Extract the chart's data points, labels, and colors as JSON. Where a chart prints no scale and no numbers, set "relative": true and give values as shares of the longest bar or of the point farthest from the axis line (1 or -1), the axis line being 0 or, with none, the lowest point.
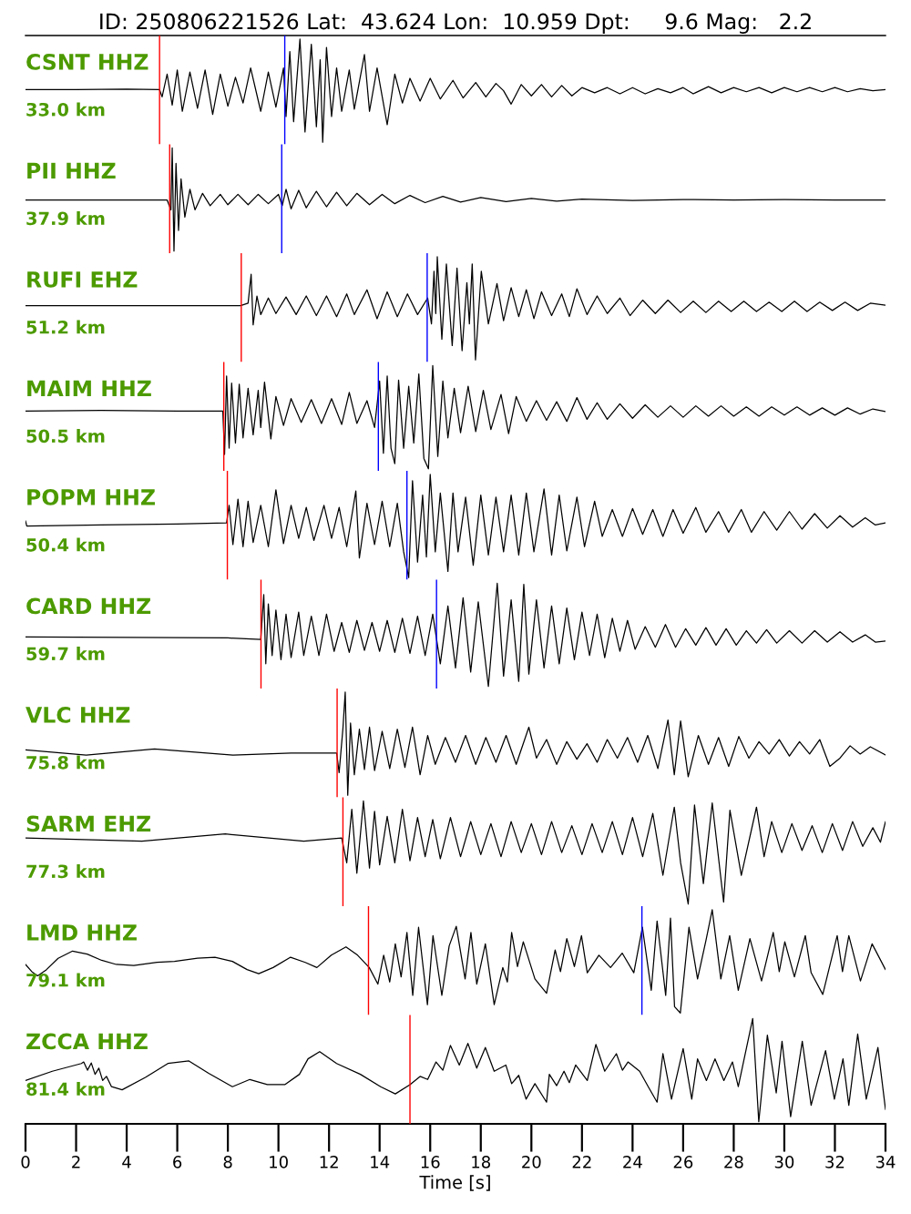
{
  "chart_data": [
    {
      "type": "line",
      "title": "ID: 250806221526 Lat:  43.624 Lon:  10.959 Dpt:     9.6 Mag:   2.2",
      "annotations": [
        "CSNT HHZ",
        "33.0 km"
      ],
      "relative": true,
      "xlim": [
        0,
        34
      ],
      "tick_labels": false,
      "ref_lines": [
        {
          "axis": "x",
          "value": 5.3,
          "color": "#ff0000"
        },
        {
          "axis": "x",
          "value": 10.25,
          "color": "#0000ff"
        }
      ],
      "series": [
        {
          "color": "#000000",
          "x": [
            0,
            2,
            4,
            5.3,
            5.4,
            5.6,
            5.8,
            6.0,
            6.2,
            6.5,
            6.8,
            7.1,
            7.4,
            7.7,
            8.0,
            8.3,
            8.6,
            8.9,
            9.3,
            9.6,
            9.9,
            10.2,
            10.3,
            10.45,
            10.6,
            10.85,
            11.05,
            11.3,
            11.5,
            11.65,
            11.75,
            11.9,
            12.1,
            12.3,
            12.5,
            12.8,
            13.0,
            13.4,
            13.6,
            13.9,
            14.3,
            14.6,
            14.9,
            15.2,
            15.6,
            16.0,
            16.4,
            16.9,
            17.3,
            17.8,
            18.2,
            18.6,
            18.9,
            19.2,
            19.6,
            20.0,
            20.4,
            20.8,
            21.2,
            21.6,
            22.0,
            22.5,
            23.0,
            23.5,
            24.0,
            24.5,
            25.0,
            25.5,
            26.0,
            26.4,
            27.0,
            27.5,
            28.0,
            28.5,
            29.0,
            29.5,
            30.0,
            30.5,
            31.0,
            31.5,
            32.0,
            32.5,
            33.0,
            33.5,
            34.0
          ],
          "values": [
            0.51,
            0.51,
            0.515,
            0.51,
            0.44,
            0.66,
            0.36,
            0.7,
            0.3,
            0.68,
            0.33,
            0.7,
            0.27,
            0.66,
            0.35,
            0.63,
            0.38,
            0.72,
            0.3,
            0.68,
            0.34,
            0.72,
            0.25,
            0.88,
            0.2,
            1.0,
            0.1,
            0.95,
            0.15,
            0.8,
            0.0,
            0.92,
            0.25,
            0.72,
            0.3,
            0.7,
            0.32,
            0.85,
            0.3,
            0.72,
            0.17,
            0.66,
            0.38,
            0.62,
            0.4,
            0.62,
            0.42,
            0.6,
            0.43,
            0.58,
            0.44,
            0.57,
            0.5,
            0.37,
            0.56,
            0.45,
            0.56,
            0.44,
            0.55,
            0.45,
            0.53,
            0.48,
            0.53,
            0.47,
            0.53,
            0.47,
            0.52,
            0.48,
            0.53,
            0.47,
            0.54,
            0.48,
            0.53,
            0.49,
            0.53,
            0.48,
            0.53,
            0.49,
            0.53,
            0.49,
            0.53,
            0.49,
            0.52,
            0.5,
            0.51
          ]
        }
      ]
    },
    {
      "type": "line",
      "annotations": [
        "PII HHZ",
        "37.9 km"
      ],
      "relative": true,
      "xlim": [
        0,
        34
      ],
      "tick_labels": false,
      "ref_lines": [
        {
          "axis": "x",
          "value": 5.7,
          "color": "#ff0000"
        },
        {
          "axis": "x",
          "value": 10.13,
          "color": "#0000ff"
        }
      ],
      "series": [
        {
          "color": "#000000",
          "x": [
            0,
            3,
            5.6,
            5.75,
            5.8,
            5.87,
            5.95,
            6.05,
            6.15,
            6.3,
            6.5,
            6.7,
            7.0,
            7.3,
            7.7,
            8.0,
            8.4,
            8.8,
            9.2,
            9.6,
            10.0,
            10.15,
            10.3,
            10.5,
            10.8,
            11.1,
            11.5,
            11.9,
            12.3,
            12.7,
            13.1,
            13.6,
            14.1,
            14.6,
            15.2,
            15.8,
            16.5,
            17.2,
            18,
            19,
            20,
            21,
            22,
            24,
            26,
            28,
            30,
            32,
            34
          ],
          "values": [
            0.495,
            0.495,
            0.495,
            0.4,
            1.0,
            0.0,
            0.85,
            0.2,
            0.7,
            0.33,
            0.6,
            0.4,
            0.56,
            0.44,
            0.55,
            0.45,
            0.55,
            0.45,
            0.55,
            0.46,
            0.55,
            0.44,
            0.6,
            0.41,
            0.59,
            0.42,
            0.58,
            0.43,
            0.57,
            0.44,
            0.56,
            0.45,
            0.55,
            0.46,
            0.54,
            0.47,
            0.53,
            0.475,
            0.52,
            0.48,
            0.51,
            0.485,
            0.505,
            0.49,
            0.5,
            0.495,
            0.5,
            0.495,
            0.495
          ]
        }
      ]
    },
    {
      "type": "line",
      "annotations": [
        "RUFI EHZ",
        "51.2 km"
      ],
      "relative": true,
      "xlim": [
        0,
        34
      ],
      "tick_labels": false,
      "ref_lines": [
        {
          "axis": "x",
          "value": 8.53,
          "color": "#ff0000"
        },
        {
          "axis": "x",
          "value": 15.88,
          "color": "#0000ff"
        }
      ],
      "series": [
        {
          "color": "#000000",
          "x": [
            0,
            4,
            8.5,
            8.8,
            8.92,
            9.0,
            9.15,
            9.3,
            9.6,
            9.9,
            10.3,
            10.7,
            11.1,
            11.5,
            11.9,
            12.3,
            12.7,
            13.0,
            13.5,
            13.9,
            14.3,
            14.7,
            15.1,
            15.5,
            15.9,
            16.05,
            16.15,
            16.22,
            16.28,
            16.46,
            16.64,
            16.87,
            17.06,
            17.26,
            17.45,
            17.55,
            17.66,
            17.79,
            18.02,
            18.3,
            18.64,
            18.9,
            19.2,
            19.5,
            19.8,
            20.1,
            20.4,
            20.8,
            21.2,
            21.5,
            21.8,
            22.2,
            22.6,
            23.0,
            23.5,
            23.9,
            24.4,
            24.9,
            25.4,
            25.9,
            26.4,
            26.9,
            27.4,
            27.9,
            28.4,
            28.9,
            29.4,
            29.9,
            30.4,
            30.9,
            31.4,
            31.9,
            32.4,
            32.9,
            33.4,
            34
          ],
          "values": [
            0.526,
            0.526,
            0.526,
            0.55,
            0.83,
            0.34,
            0.62,
            0.44,
            0.6,
            0.45,
            0.61,
            0.44,
            0.62,
            0.43,
            0.62,
            0.42,
            0.64,
            0.44,
            0.68,
            0.4,
            0.66,
            0.42,
            0.64,
            0.44,
            0.6,
            0.35,
            0.86,
            0.45,
            1.0,
            0.2,
            0.93,
            0.14,
            0.89,
            0.09,
            0.75,
            0.35,
            0.93,
            0.0,
            0.86,
            0.35,
            0.74,
            0.38,
            0.7,
            0.42,
            0.68,
            0.4,
            0.66,
            0.43,
            0.64,
            0.42,
            0.69,
            0.44,
            0.62,
            0.45,
            0.6,
            0.43,
            0.58,
            0.45,
            0.58,
            0.46,
            0.57,
            0.46,
            0.57,
            0.47,
            0.57,
            0.47,
            0.56,
            0.47,
            0.57,
            0.47,
            0.56,
            0.48,
            0.56,
            0.48,
            0.55,
            0.53
          ]
        }
      ]
    },
    {
      "type": "line",
      "annotations": [
        "MAIM HHZ",
        "50.5 km"
      ],
      "relative": true,
      "xlim": [
        0,
        34
      ],
      "tick_labels": false,
      "ref_lines": [
        {
          "axis": "x",
          "value": 7.84,
          "color": "#ff0000"
        },
        {
          "axis": "x",
          "value": 13.95,
          "color": "#0000ff"
        }
      ],
      "series": [
        {
          "color": "#000000",
          "x": [
            0,
            3,
            6,
            7.8,
            7.87,
            7.95,
            8.05,
            8.15,
            8.3,
            8.45,
            8.6,
            8.8,
            9.0,
            9.2,
            9.3,
            9.45,
            9.7,
            9.9,
            10.2,
            10.5,
            10.9,
            11.3,
            11.7,
            12.1,
            12.5,
            12.8,
            13.1,
            13.5,
            13.8,
            14.0,
            14.15,
            14.3,
            14.45,
            14.6,
            14.75,
            14.95,
            15.15,
            15.35,
            15.55,
            15.75,
            15.93,
            16.1,
            16.3,
            16.5,
            16.7,
            16.95,
            17.2,
            17.5,
            17.8,
            18.1,
            18.4,
            18.8,
            19.1,
            19.4,
            19.8,
            20.2,
            20.6,
            21.0,
            21.4,
            21.8,
            22.2,
            22.6,
            23.0,
            23.5,
            24.0,
            24.5,
            25.0,
            25.5,
            26.0,
            26.5,
            27.0,
            27.5,
            28.0,
            28.5,
            29.0,
            29.5,
            30.0,
            30.5,
            31.0,
            31.5,
            32.0,
            32.5,
            33.0,
            33.5,
            34.0
          ],
          "values": [
            0.56,
            0.565,
            0.56,
            0.56,
            0.14,
            0.9,
            0.2,
            0.83,
            0.25,
            0.82,
            0.3,
            0.78,
            0.33,
            0.76,
            0.4,
            0.84,
            0.29,
            0.7,
            0.42,
            0.68,
            0.45,
            0.67,
            0.44,
            0.68,
            0.43,
            0.74,
            0.44,
            0.66,
            0.4,
            0.85,
            0.15,
            0.9,
            0.2,
            0.05,
            0.86,
            0.2,
            0.8,
            0.25,
            0.92,
            0.1,
            0.0,
            1.0,
            0.12,
            0.85,
            0.3,
            0.78,
            0.35,
            0.8,
            0.36,
            0.76,
            0.38,
            0.72,
            0.34,
            0.7,
            0.46,
            0.66,
            0.47,
            0.65,
            0.46,
            0.69,
            0.48,
            0.64,
            0.48,
            0.63,
            0.49,
            0.62,
            0.5,
            0.61,
            0.5,
            0.61,
            0.51,
            0.61,
            0.51,
            0.6,
            0.51,
            0.6,
            0.52,
            0.6,
            0.52,
            0.59,
            0.52,
            0.59,
            0.53,
            0.58,
            0.555
          ]
        }
      ]
    },
    {
      "type": "line",
      "annotations": [
        "POPM HHZ",
        "50.4 km"
      ],
      "relative": true,
      "xlim": [
        0,
        34
      ],
      "tick_labels": false,
      "ref_lines": [
        {
          "axis": "x",
          "value": 7.98,
          "color": "#ff0000"
        },
        {
          "axis": "x",
          "value": 15.08,
          "color": "#0000ff"
        }
      ],
      "series": [
        {
          "color": "#000000",
          "x": [
            0,
            0.05,
            3,
            6,
            7.95,
            8.05,
            8.2,
            8.4,
            8.6,
            8.8,
            9.0,
            9.3,
            9.6,
            9.9,
            10.2,
            10.5,
            10.8,
            11.1,
            11.4,
            11.8,
            12.1,
            12.4,
            12.7,
            13.06,
            13.2,
            13.5,
            13.8,
            14.1,
            14.4,
            14.7,
            14.95,
            15.15,
            15.3,
            15.5,
            15.7,
            15.85,
            16.0,
            16.2,
            16.4,
            16.7,
            16.9,
            17.1,
            17.4,
            17.7,
            18.0,
            18.3,
            18.6,
            18.9,
            19.2,
            19.5,
            19.8,
            20.1,
            20.5,
            20.8,
            21.1,
            21.4,
            21.8,
            22.1,
            22.5,
            22.8,
            23.2,
            23.6,
            24.0,
            24.4,
            24.8,
            25.2,
            25.6,
            26.0,
            26.5,
            26.9,
            27.4,
            27.8,
            28.3,
            28.7,
            29.2,
            29.7,
            30.2,
            30.7,
            31.2,
            31.7,
            32.2,
            32.7,
            33.2,
            33.6,
            34.0
          ],
          "values": [
            0.55,
            0.5,
            0.51,
            0.52,
            0.53,
            0.7,
            0.32,
            0.76,
            0.3,
            0.74,
            0.34,
            0.7,
            0.3,
            0.85,
            0.33,
            0.7,
            0.38,
            0.68,
            0.36,
            0.7,
            0.38,
            0.68,
            0.3,
            0.84,
            0.19,
            0.72,
            0.32,
            0.74,
            0.3,
            0.72,
            0.25,
            0.0,
            0.94,
            0.15,
            0.8,
            0.2,
            1.0,
            0.25,
            0.82,
            0.06,
            0.82,
            0.25,
            0.78,
            0.12,
            0.8,
            0.22,
            0.78,
            0.25,
            0.8,
            0.22,
            0.82,
            0.25,
            0.86,
            0.22,
            0.8,
            0.26,
            0.78,
            0.3,
            0.74,
            0.4,
            0.66,
            0.4,
            0.67,
            0.42,
            0.66,
            0.4,
            0.66,
            0.43,
            0.68,
            0.44,
            0.64,
            0.44,
            0.66,
            0.44,
            0.64,
            0.46,
            0.64,
            0.47,
            0.62,
            0.48,
            0.6,
            0.49,
            0.58,
            0.51,
            0.53
          ]
        }
      ]
    },
    {
      "type": "line",
      "annotations": [
        "CARD HHZ",
        "59.7 km"
      ],
      "relative": true,
      "xlim": [
        0,
        34
      ],
      "tick_labels": false,
      "ref_lines": [
        {
          "axis": "x",
          "value": 9.31,
          "color": "#ff0000"
        },
        {
          "axis": "x",
          "value": 16.25,
          "color": "#0000ff"
        }
      ],
      "series": [
        {
          "color": "#000000",
          "x": [
            0,
            4,
            8,
            9.3,
            9.42,
            9.5,
            9.6,
            9.75,
            9.9,
            10.1,
            10.3,
            10.5,
            10.8,
            11.0,
            11.3,
            11.6,
            11.9,
            12.2,
            12.5,
            12.8,
            13.1,
            13.4,
            13.7,
            14.0,
            14.3,
            14.6,
            14.9,
            15.2,
            15.5,
            15.8,
            16.1,
            16.4,
            16.7,
            17.0,
            17.3,
            17.6,
            17.9,
            18.3,
            18.65,
            18.9,
            19.2,
            19.5,
            19.7,
            19.9,
            20.2,
            20.5,
            20.8,
            21.1,
            21.4,
            21.7,
            22.0,
            22.3,
            22.6,
            22.9,
            23.2,
            23.5,
            23.8,
            24.1,
            24.5,
            24.9,
            25.3,
            25.7,
            26.1,
            26.5,
            26.9,
            27.3,
            27.7,
            28.1,
            28.5,
            28.9,
            29.3,
            29.7,
            30.2,
            30.7,
            31.2,
            31.7,
            32.2,
            32.7,
            33.2,
            33.6,
            34.0
          ],
          "values": [
            0.48,
            0.475,
            0.47,
            0.455,
            0.89,
            0.22,
            0.8,
            0.3,
            0.74,
            0.26,
            0.7,
            0.28,
            0.72,
            0.3,
            0.68,
            0.3,
            0.7,
            0.34,
            0.62,
            0.33,
            0.64,
            0.35,
            0.62,
            0.34,
            0.64,
            0.33,
            0.66,
            0.32,
            0.68,
            0.3,
            0.7,
            0.22,
            0.78,
            0.18,
            0.86,
            0.14,
            0.82,
            0.0,
            1.0,
            0.1,
            0.84,
            0.05,
            0.99,
            0.12,
            0.84,
            0.18,
            0.78,
            0.22,
            0.76,
            0.26,
            0.72,
            0.3,
            0.7,
            0.28,
            0.66,
            0.34,
            0.64,
            0.36,
            0.58,
            0.38,
            0.6,
            0.38,
            0.56,
            0.4,
            0.57,
            0.4,
            0.56,
            0.4,
            0.54,
            0.42,
            0.55,
            0.42,
            0.54,
            0.42,
            0.54,
            0.43,
            0.53,
            0.43,
            0.5,
            0.43,
            0.44
          ]
        }
      ]
    },
    {
      "type": "line",
      "annotations": [
        "VLC HHZ",
        "75.8 km"
      ],
      "relative": true,
      "xlim": [
        0,
        34
      ],
      "tick_labels": false,
      "ref_lines": [
        {
          "axis": "x",
          "value": 12.32,
          "color": "#ff0000"
        }
      ],
      "series": [
        {
          "color": "#000000",
          "x": [
            0,
            2.4,
            5.1,
            8.2,
            10.5,
            12.3,
            12.4,
            12.55,
            12.64,
            12.74,
            12.85,
            13.0,
            13.2,
            13.4,
            13.6,
            13.8,
            14.1,
            14.4,
            14.7,
            15.0,
            15.3,
            15.6,
            15.9,
            16.2,
            16.6,
            17.0,
            17.4,
            17.8,
            18.2,
            18.6,
            19.0,
            19.4,
            19.9,
            20.2,
            20.6,
            21.0,
            21.4,
            21.8,
            22.2,
            22.6,
            23.0,
            23.4,
            23.8,
            24.2,
            24.6,
            25.0,
            25.4,
            25.65,
            25.9,
            26.2,
            26.6,
            27.0,
            27.4,
            27.8,
            28.2,
            28.6,
            29.0,
            29.4,
            29.8,
            30.2,
            30.6,
            31.0,
            31.4,
            31.8,
            32.2,
            32.6,
            33.0,
            33.4,
            34.0
          ],
          "values": [
            0.44,
            0.39,
            0.45,
            0.39,
            0.41,
            0.41,
            0.22,
            0.65,
            1.0,
            0.0,
            0.7,
            0.2,
            0.64,
            0.25,
            0.66,
            0.24,
            0.62,
            0.26,
            0.64,
            0.27,
            0.66,
            0.2,
            0.58,
            0.3,
            0.56,
            0.32,
            0.58,
            0.3,
            0.56,
            0.32,
            0.58,
            0.3,
            0.66,
            0.36,
            0.54,
            0.3,
            0.52,
            0.35,
            0.5,
            0.32,
            0.54,
            0.36,
            0.56,
            0.32,
            0.58,
            0.26,
            0.73,
            0.2,
            0.72,
            0.18,
            0.58,
            0.3,
            0.56,
            0.28,
            0.57,
            0.36,
            0.52,
            0.4,
            0.54,
            0.38,
            0.52,
            0.4,
            0.54,
            0.28,
            0.36,
            0.48,
            0.4,
            0.47,
            0.39
          ]
        }
      ]
    },
    {
      "type": "line",
      "annotations": [
        "SARM EHZ",
        "77.3 km"
      ],
      "relative": true,
      "xlim": [
        0,
        34
      ],
      "tick_labels": false,
      "ref_lines": [
        {
          "axis": "x",
          "value": 12.55,
          "color": "#ff0000"
        }
      ],
      "series": [
        {
          "color": "#000000",
          "x": [
            0,
            4.6,
            7.9,
            11.0,
            12.5,
            12.7,
            12.9,
            13.1,
            13.36,
            13.6,
            13.8,
            14.0,
            14.3,
            14.6,
            14.9,
            15.2,
            15.5,
            15.8,
            16.1,
            16.4,
            16.8,
            17.2,
            17.6,
            18.0,
            18.4,
            18.8,
            19.2,
            19.6,
            20.0,
            20.4,
            20.8,
            21.2,
            21.6,
            22.0,
            22.4,
            22.8,
            23.2,
            23.6,
            24.0,
            24.4,
            24.8,
            25.2,
            25.65,
            25.9,
            26.2,
            26.45,
            26.8,
            27.15,
            27.6,
            27.85,
            28.3,
            28.9,
            29.2,
            29.5,
            29.9,
            30.3,
            30.7,
            31.1,
            31.5,
            31.9,
            32.3,
            32.7,
            33.1,
            33.5,
            33.8,
            34.0
          ],
          "values": [
            0.64,
            0.61,
            0.68,
            0.61,
            0.64,
            0.4,
            0.92,
            0.3,
            1.0,
            0.35,
            0.9,
            0.38,
            0.85,
            0.4,
            0.92,
            0.42,
            0.84,
            0.46,
            0.82,
            0.44,
            0.84,
            0.46,
            0.8,
            0.48,
            0.78,
            0.46,
            0.8,
            0.5,
            0.78,
            0.48,
            0.8,
            0.5,
            0.76,
            0.48,
            0.78,
            0.5,
            0.8,
            0.48,
            0.84,
            0.46,
            0.88,
            0.28,
            0.94,
            0.4,
            0.0,
            0.96,
            0.2,
            0.98,
            0.02,
            0.91,
            0.28,
            0.94,
            0.46,
            0.8,
            0.5,
            0.78,
            0.52,
            0.76,
            0.5,
            0.78,
            0.52,
            0.8,
            0.56,
            0.74,
            0.6,
            0.8
          ]
        }
      ]
    },
    {
      "type": "line",
      "annotations": [
        "LMD HHZ",
        "79.1 km"
      ],
      "relative": true,
      "xlim": [
        0,
        34
      ],
      "tick_labels": false,
      "ref_lines": [
        {
          "axis": "x",
          "value": 13.56,
          "color": "#ff0000"
        },
        {
          "axis": "x",
          "value": 24.37,
          "color": "#0000ff"
        }
      ],
      "series": [
        {
          "color": "#000000",
          "x": [
            0,
            0.25,
            0.48,
            0.83,
            1.29,
            1.86,
            2.44,
            3.01,
            3.59,
            4.28,
            5.2,
            5.89,
            6.8,
            7.49,
            8.18,
            8.76,
            9.22,
            9.79,
            10.48,
            11.06,
            11.52,
            12.09,
            12.67,
            13.13,
            13.59,
            13.93,
            14.16,
            14.4,
            14.62,
            14.85,
            15.08,
            15.31,
            15.54,
            15.89,
            16.11,
            16.46,
            16.75,
            17.03,
            17.38,
            17.61,
            17.84,
            18.18,
            18.53,
            18.87,
            19.05,
            19.22,
            19.45,
            19.68,
            20.14,
            20.6,
            20.94,
            21.15,
            21.4,
            21.7,
            21.98,
            22.21,
            22.67,
            23.13,
            23.59,
            24.05,
            24.39,
            24.74,
            24.97,
            25.31,
            25.5,
            25.66,
            25.89,
            26.23,
            26.57,
            26.9,
            27.15,
            27.49,
            27.84,
            28.18,
            28.64,
            29.1,
            29.56,
            29.8,
            30.02,
            30.4,
            30.83,
            31.06,
            31.52,
            32.09,
            32.3,
            32.55,
            33.01,
            33.47,
            34.0
          ],
          "values": [
            0.47,
            0.4,
            0.36,
            0.42,
            0.53,
            0.6,
            0.57,
            0.51,
            0.47,
            0.46,
            0.49,
            0.5,
            0.53,
            0.54,
            0.5,
            0.42,
            0.38,
            0.44,
            0.54,
            0.49,
            0.44,
            0.56,
            0.64,
            0.56,
            0.44,
            0.28,
            0.56,
            0.3,
            0.67,
            0.35,
            0.78,
            0.17,
            0.83,
            0.08,
            0.75,
            0.17,
            0.65,
            0.84,
            0.33,
            0.78,
            0.28,
            0.67,
            0.08,
            0.44,
            0.3,
            0.78,
            0.45,
            0.69,
            0.33,
            0.19,
            0.61,
            0.4,
            0.72,
            0.45,
            0.75,
            0.39,
            0.56,
            0.44,
            0.58,
            0.39,
            0.83,
            0.22,
            0.89,
            0.17,
            0.92,
            0.06,
            0.0,
            0.83,
            0.33,
            0.7,
            1.0,
            0.33,
            0.75,
            0.22,
            0.72,
            0.31,
            0.78,
            0.4,
            0.69,
            0.35,
            0.75,
            0.39,
            0.18,
            0.75,
            0.4,
            0.75,
            0.31,
            0.67,
            0.42
          ]
        }
      ]
    },
    {
      "type": "line",
      "annotations": [
        "ZCCA HHZ",
        "81.4 km"
      ],
      "relative": true,
      "xlim": [
        0,
        34
      ],
      "tick_labels": "x",
      "xlabel": "Time [s]",
      "ref_lines": [
        {
          "axis": "x",
          "value": 15.2,
          "color": "#ff0000"
        }
      ],
      "xticks": [
        0,
        2,
        4,
        6,
        8,
        10,
        12,
        14,
        16,
        18,
        20,
        22,
        24,
        26,
        28,
        30,
        32,
        34
      ],
      "series": [
        {
          "color": "#000000",
          "x": [
            0,
            1.06,
            2.21,
            2.3,
            2.45,
            2.6,
            2.75,
            2.9,
            3.05,
            3.2,
            3.4,
            3.82,
            4.74,
            5.63,
            6.46,
            7.24,
            8.18,
            8.87,
            9.56,
            10.25,
            10.83,
            11.17,
            11.63,
            12.3,
            13.24,
            14.04,
            14.62,
            15.2,
            15.6,
            15.9,
            16.23,
            16.5,
            16.8,
            17.15,
            17.49,
            17.84,
            18.18,
            18.53,
            18.99,
            19.22,
            19.5,
            19.79,
            20.14,
            20.6,
            20.71,
            21.0,
            21.29,
            21.5,
            21.75,
            22.21,
            22.55,
            22.9,
            23.36,
            23.6,
            23.82,
            24.28,
            24.62,
            24.97,
            25.2,
            25.54,
            26.0,
            26.34,
            26.57,
            26.92,
            27.26,
            27.61,
            27.95,
            28.18,
            28.75,
            28.99,
            29.33,
            29.68,
            29.91,
            30.25,
            30.71,
            31.06,
            31.63,
            31.98,
            32.32,
            32.55,
            32.9,
            33.24,
            33.7,
            34.0
          ],
          "values": [
            0.4,
            0.49,
            0.565,
            0.58,
            0.5,
            0.57,
            0.46,
            0.52,
            0.4,
            0.44,
            0.34,
            0.31,
            0.43,
            0.565,
            0.59,
            0.47,
            0.34,
            0.41,
            0.36,
            0.36,
            0.46,
            0.61,
            0.68,
            0.565,
            0.46,
            0.34,
            0.27,
            0.36,
            0.44,
            0.41,
            0.58,
            0.5,
            0.74,
            0.55,
            0.76,
            0.52,
            0.72,
            0.49,
            0.55,
            0.37,
            0.45,
            0.22,
            0.37,
            0.19,
            0.46,
            0.35,
            0.49,
            0.38,
            0.55,
            0.4,
            0.75,
            0.49,
            0.66,
            0.5,
            0.58,
            0.49,
            0.34,
            0.19,
            0.66,
            0.22,
            0.71,
            0.22,
            0.61,
            0.4,
            0.61,
            0.4,
            0.58,
            0.34,
            1.0,
            0.0,
            0.84,
            0.28,
            0.78,
            0.05,
            0.78,
            0.16,
            0.69,
            0.22,
            0.61,
            0.16,
            0.85,
            0.22,
            0.72,
            0.12
          ]
        }
      ]
    }
  ]
}
